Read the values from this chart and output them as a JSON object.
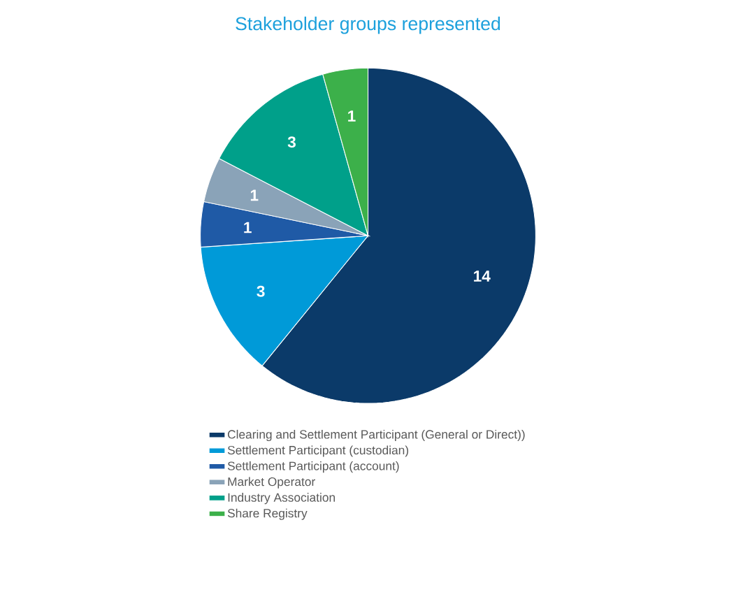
{
  "chart_data": {
    "type": "pie",
    "title": "Stakeholder groups represented",
    "categories": [
      "Clearing  and Settlement Participant (General or Direct))",
      "Settlement Participant (custodian)",
      "Settlement Participant (account)",
      "Market Operator",
      "Industry Association",
      "Share Registry"
    ],
    "values": [
      14,
      3,
      1,
      1,
      3,
      1
    ],
    "colors": [
      "#0b3a69",
      "#009ad8",
      "#1f5aa6",
      "#8aa3b8",
      "#00a08a",
      "#3cb04a"
    ],
    "data_labels": true,
    "legend": "bottom"
  }
}
